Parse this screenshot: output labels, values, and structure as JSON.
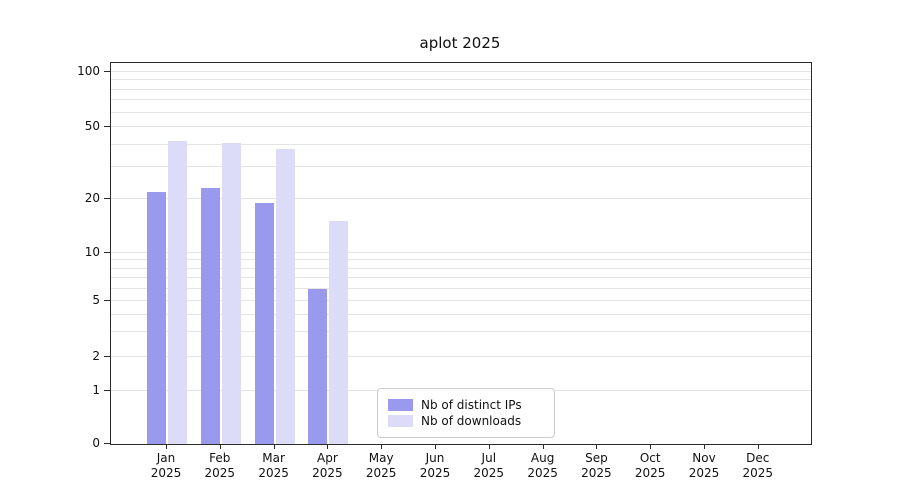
{
  "chart_data": {
    "type": "bar",
    "title": "aplot 2025",
    "year_label": "2025",
    "categories": [
      "Jan",
      "Feb",
      "Mar",
      "Apr",
      "May",
      "Jun",
      "Jul",
      "Aug",
      "Sep",
      "Oct",
      "Nov",
      "Dec"
    ],
    "series": [
      {
        "name": "Nb of distinct IPs",
        "color": "#9999ee",
        "values": [
          22,
          23,
          19,
          6,
          0,
          0,
          0,
          0,
          0,
          0,
          0,
          0
        ]
      },
      {
        "name": "Nb of downloads",
        "color": "#dcdcf8",
        "values": [
          42,
          41,
          38,
          15,
          0,
          0,
          0,
          0,
          0,
          0,
          0,
          0
        ]
      }
    ],
    "yscale": "symlog",
    "ylim": [
      0,
      100
    ],
    "yticks": [
      0,
      1,
      2,
      5,
      10,
      20,
      50,
      100
    ],
    "minor_gridlines": [
      1,
      2,
      3,
      4,
      5,
      6,
      7,
      8,
      9,
      10,
      20,
      30,
      40,
      50,
      60,
      70,
      80,
      90,
      100
    ],
    "grid": "on",
    "legend_position": "lower center"
  }
}
